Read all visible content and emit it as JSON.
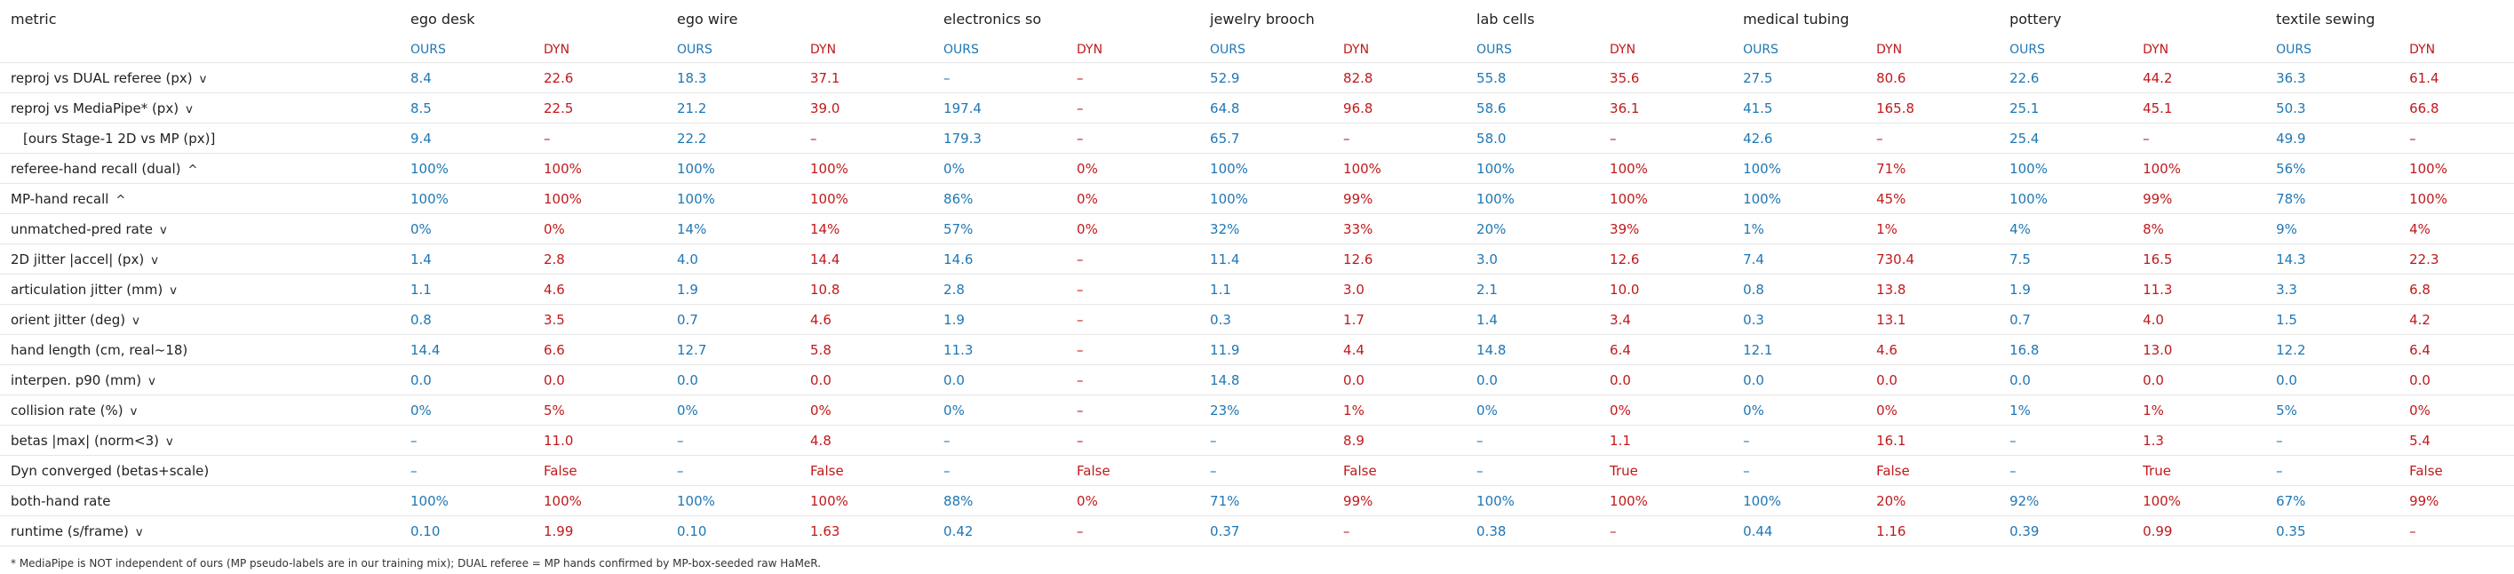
{
  "table": {
    "metric_header": "metric",
    "ours_label": "OURS",
    "dyn_label": "DYN",
    "datasets": [
      "ego desk",
      "ego wire",
      "electronics so",
      "jewelry brooch",
      "lab cells",
      "medical tubing",
      "pottery",
      "textile sewing"
    ],
    "rows": [
      {
        "label": "reproj vs DUAL referee (px)",
        "arrow": "v",
        "indent": false,
        "values": [
          [
            "8.4",
            "22.6"
          ],
          [
            "18.3",
            "37.1"
          ],
          [
            "–",
            "–"
          ],
          [
            "52.9",
            "82.8"
          ],
          [
            "55.8",
            "35.6"
          ],
          [
            "27.5",
            "80.6"
          ],
          [
            "22.6",
            "44.2"
          ],
          [
            "36.3",
            "61.4"
          ]
        ]
      },
      {
        "label": "reproj vs MediaPipe* (px)",
        "arrow": "v",
        "indent": false,
        "values": [
          [
            "8.5",
            "22.5"
          ],
          [
            "21.2",
            "39.0"
          ],
          [
            "197.4",
            "–"
          ],
          [
            "64.8",
            "96.8"
          ],
          [
            "58.6",
            "36.1"
          ],
          [
            "41.5",
            "165.8"
          ],
          [
            "25.1",
            "45.1"
          ],
          [
            "50.3",
            "66.8"
          ]
        ]
      },
      {
        "label": "[ours Stage-1 2D vs MP (px)]",
        "arrow": "",
        "indent": true,
        "values": [
          [
            "9.4",
            "–"
          ],
          [
            "22.2",
            "–"
          ],
          [
            "179.3",
            "–"
          ],
          [
            "65.7",
            "–"
          ],
          [
            "58.0",
            "–"
          ],
          [
            "42.6",
            "–"
          ],
          [
            "25.4",
            "–"
          ],
          [
            "49.9",
            "–"
          ]
        ]
      },
      {
        "label": "referee-hand recall (dual)",
        "arrow": "^",
        "indent": false,
        "values": [
          [
            "100%",
            "100%"
          ],
          [
            "100%",
            "100%"
          ],
          [
            "0%",
            "0%"
          ],
          [
            "100%",
            "100%"
          ],
          [
            "100%",
            "100%"
          ],
          [
            "100%",
            "71%"
          ],
          [
            "100%",
            "100%"
          ],
          [
            "56%",
            "100%"
          ]
        ]
      },
      {
        "label": "MP-hand recall",
        "arrow": "^",
        "indent": false,
        "values": [
          [
            "100%",
            "100%"
          ],
          [
            "100%",
            "100%"
          ],
          [
            "86%",
            "0%"
          ],
          [
            "100%",
            "99%"
          ],
          [
            "100%",
            "100%"
          ],
          [
            "100%",
            "45%"
          ],
          [
            "100%",
            "99%"
          ],
          [
            "78%",
            "100%"
          ]
        ]
      },
      {
        "label": "unmatched-pred rate",
        "arrow": "v",
        "indent": false,
        "values": [
          [
            "0%",
            "0%"
          ],
          [
            "14%",
            "14%"
          ],
          [
            "57%",
            "0%"
          ],
          [
            "32%",
            "33%"
          ],
          [
            "20%",
            "39%"
          ],
          [
            "1%",
            "1%"
          ],
          [
            "4%",
            "8%"
          ],
          [
            "9%",
            "4%"
          ]
        ]
      },
      {
        "label": "2D jitter |accel| (px)",
        "arrow": "v",
        "indent": false,
        "values": [
          [
            "1.4",
            "2.8"
          ],
          [
            "4.0",
            "14.4"
          ],
          [
            "14.6",
            "–"
          ],
          [
            "11.4",
            "12.6"
          ],
          [
            "3.0",
            "12.6"
          ],
          [
            "7.4",
            "730.4"
          ],
          [
            "7.5",
            "16.5"
          ],
          [
            "14.3",
            "22.3"
          ]
        ]
      },
      {
        "label": "articulation jitter (mm)",
        "arrow": "v",
        "indent": false,
        "values": [
          [
            "1.1",
            "4.6"
          ],
          [
            "1.9",
            "10.8"
          ],
          [
            "2.8",
            "–"
          ],
          [
            "1.1",
            "3.0"
          ],
          [
            "2.1",
            "10.0"
          ],
          [
            "0.8",
            "13.8"
          ],
          [
            "1.9",
            "11.3"
          ],
          [
            "3.3",
            "6.8"
          ]
        ]
      },
      {
        "label": "orient jitter (deg)",
        "arrow": "v",
        "indent": false,
        "values": [
          [
            "0.8",
            "3.5"
          ],
          [
            "0.7",
            "4.6"
          ],
          [
            "1.9",
            "–"
          ],
          [
            "0.3",
            "1.7"
          ],
          [
            "1.4",
            "3.4"
          ],
          [
            "0.3",
            "13.1"
          ],
          [
            "0.7",
            "4.0"
          ],
          [
            "1.5",
            "4.2"
          ]
        ]
      },
      {
        "label": "hand length (cm, real~18)",
        "arrow": "",
        "indent": false,
        "values": [
          [
            "14.4",
            "6.6"
          ],
          [
            "12.7",
            "5.8"
          ],
          [
            "11.3",
            "–"
          ],
          [
            "11.9",
            "4.4"
          ],
          [
            "14.8",
            "6.4"
          ],
          [
            "12.1",
            "4.6"
          ],
          [
            "16.8",
            "13.0"
          ],
          [
            "12.2",
            "6.4"
          ]
        ]
      },
      {
        "label": "interpen. p90 (mm)",
        "arrow": "v",
        "indent": false,
        "values": [
          [
            "0.0",
            "0.0"
          ],
          [
            "0.0",
            "0.0"
          ],
          [
            "0.0",
            "–"
          ],
          [
            "14.8",
            "0.0"
          ],
          [
            "0.0",
            "0.0"
          ],
          [
            "0.0",
            "0.0"
          ],
          [
            "0.0",
            "0.0"
          ],
          [
            "0.0",
            "0.0"
          ]
        ]
      },
      {
        "label": "collision rate (%)",
        "arrow": "v",
        "indent": false,
        "values": [
          [
            "0%",
            "5%"
          ],
          [
            "0%",
            "0%"
          ],
          [
            "0%",
            "–"
          ],
          [
            "23%",
            "1%"
          ],
          [
            "0%",
            "0%"
          ],
          [
            "0%",
            "0%"
          ],
          [
            "1%",
            "1%"
          ],
          [
            "5%",
            "0%"
          ]
        ]
      },
      {
        "label": "betas |max| (norm<3)",
        "arrow": "v",
        "indent": false,
        "values": [
          [
            "–",
            "11.0"
          ],
          [
            "–",
            "4.8"
          ],
          [
            "–",
            "–"
          ],
          [
            "–",
            "8.9"
          ],
          [
            "–",
            "1.1"
          ],
          [
            "–",
            "16.1"
          ],
          [
            "–",
            "1.3"
          ],
          [
            "–",
            "5.4"
          ]
        ]
      },
      {
        "label": "Dyn converged (betas+scale)",
        "arrow": "",
        "indent": false,
        "values": [
          [
            "–",
            "False"
          ],
          [
            "–",
            "False"
          ],
          [
            "–",
            "False"
          ],
          [
            "–",
            "False"
          ],
          [
            "–",
            "True"
          ],
          [
            "–",
            "False"
          ],
          [
            "–",
            "True"
          ],
          [
            "–",
            "False"
          ]
        ]
      },
      {
        "label": "both-hand rate",
        "arrow": "",
        "indent": false,
        "values": [
          [
            "100%",
            "100%"
          ],
          [
            "100%",
            "100%"
          ],
          [
            "88%",
            "0%"
          ],
          [
            "71%",
            "99%"
          ],
          [
            "100%",
            "100%"
          ],
          [
            "100%",
            "20%"
          ],
          [
            "92%",
            "100%"
          ],
          [
            "67%",
            "99%"
          ]
        ]
      },
      {
        "label": "runtime (s/frame)",
        "arrow": "v",
        "indent": false,
        "values": [
          [
            "0.10",
            "1.99"
          ],
          [
            "0.10",
            "1.63"
          ],
          [
            "0.42",
            "–"
          ],
          [
            "0.37",
            "–"
          ],
          [
            "0.38",
            "–"
          ],
          [
            "0.44",
            "1.16"
          ],
          [
            "0.39",
            "0.99"
          ],
          [
            "0.35",
            "–"
          ]
        ]
      }
    ]
  },
  "footnote": "* MediaPipe is NOT independent of ours (MP pseudo-labels are in our training mix); DUAL referee = MP hands confirmed by MP-box-seeded raw HaMeR.",
  "colors": {
    "ours": "#1f77b4",
    "dyn": "#c0191c"
  }
}
